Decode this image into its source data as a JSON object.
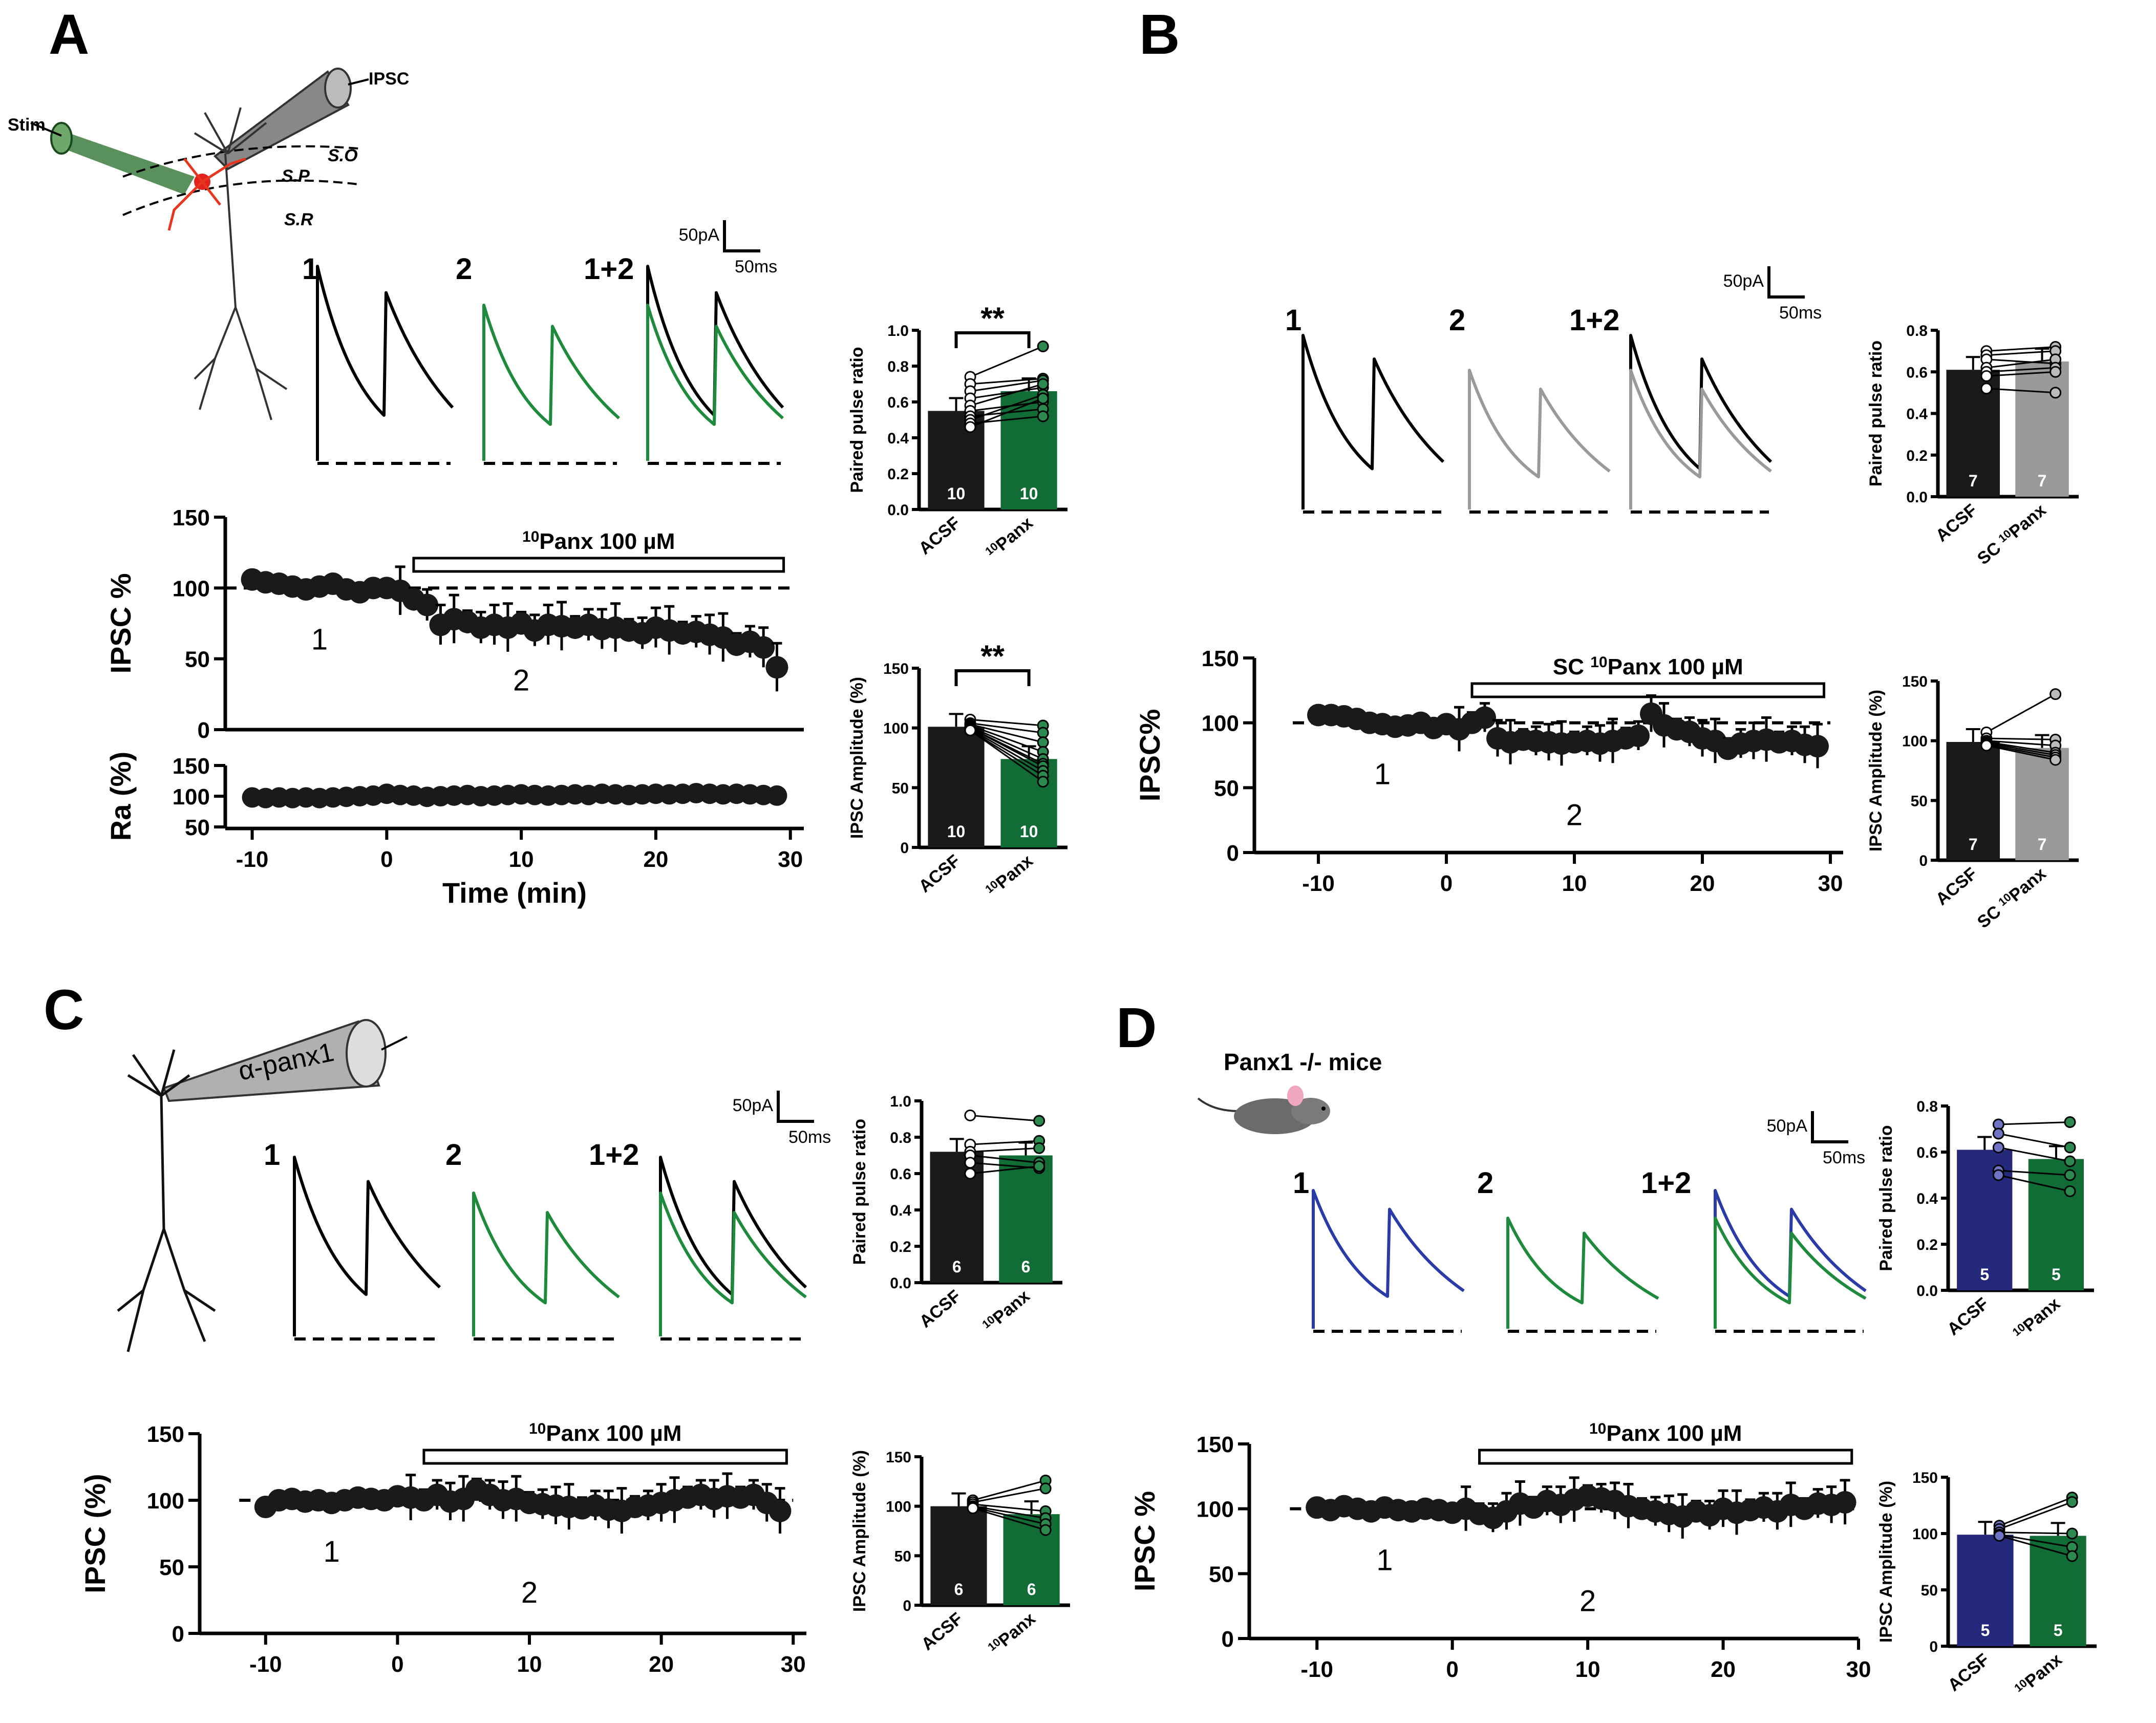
{
  "colors": {
    "acsf": "#1a1a1a",
    "panx": "#116c35",
    "sc": "#9a9a9c",
    "ko": "#25297c",
    "black": "#000000"
  },
  "panel_labels": [
    "A",
    "B",
    "C",
    "D"
  ],
  "traces": {
    "labels": [
      "1",
      "2",
      "1+2"
    ],
    "scale_pa": "50pA",
    "scale_ms": "50ms"
  },
  "schematic_a": {
    "stim": "Stim",
    "ipsc": "IPSC",
    "layers": [
      "S.O",
      "S.P",
      "S.R"
    ]
  },
  "schematic_c": {
    "pipette": "α-panx1"
  },
  "schematic_d": {
    "title": "Panx1 -/- mice",
    "icon": "mouse-icon"
  },
  "chart_data": [
    {
      "type": "scatter",
      "panel": "A",
      "drug_label": "10Panx 100 µM",
      "drug_sup": "10",
      "drug_rest": "Panx 100 µM",
      "ylabel": "IPSC %",
      "xlabel": "Time (min)",
      "xlim": [
        -12,
        31
      ],
      "ylim": [
        0,
        150
      ],
      "xticks": [
        "-10",
        "0",
        "10",
        "20",
        "30"
      ],
      "yticks": [
        "0",
        "50",
        "100",
        "150"
      ],
      "marks": [
        "1",
        "2"
      ],
      "x": [
        -10,
        -9,
        -8,
        -7,
        -6,
        -5,
        -4,
        -3,
        -2,
        -1,
        0,
        1,
        2,
        3,
        4,
        5,
        6,
        7,
        8,
        9,
        10,
        11,
        12,
        13,
        14,
        15,
        16,
        17,
        18,
        19,
        20,
        21,
        22,
        23,
        24,
        25,
        26,
        27,
        28,
        29
      ],
      "y": [
        106,
        104,
        103,
        101,
        99,
        101,
        103,
        99,
        97,
        100,
        100,
        98,
        92,
        88,
        74,
        78,
        76,
        72,
        74,
        72,
        75,
        70,
        74,
        73,
        72,
        74,
        71,
        72,
        70,
        68,
        72,
        70,
        68,
        69,
        67,
        65,
        60,
        62,
        58,
        44
      ],
      "sub": {
        "ylabel": "Ra (%)",
        "ylim": [
          50,
          150
        ],
        "yticks": [
          "50",
          "100",
          "150"
        ],
        "x": [
          -10,
          -9,
          -8,
          -7,
          -6,
          -5,
          -4,
          -3,
          -2,
          -1,
          0,
          1,
          2,
          3,
          4,
          5,
          6,
          7,
          8,
          9,
          10,
          11,
          12,
          13,
          14,
          15,
          16,
          17,
          18,
          19,
          20,
          21,
          22,
          23,
          24,
          25,
          26,
          27,
          28,
          29
        ],
        "y": [
          98,
          97,
          98,
          97,
          98,
          97,
          98,
          99,
          100,
          101,
          104,
          102,
          101,
          99,
          100,
          101,
          102,
          100,
          101,
          102,
          103,
          102,
          101,
          102,
          103,
          102,
          104,
          103,
          102,
          103,
          104,
          103,
          104,
          105,
          104,
          103,
          104,
          103,
          102,
          101
        ]
      },
      "ppr": {
        "ylabel": "Paired pulse ratio",
        "ylim": [
          0,
          1.0
        ],
        "yticks": [
          "0.0",
          "0.2",
          "0.4",
          "0.6",
          "0.8",
          "1.0"
        ],
        "categories": [
          "ACSF",
          "10Panx"
        ],
        "cat_sups": [
          "",
          "10"
        ],
        "cat_rests": [
          "ACSF",
          "Panx"
        ],
        "values": [
          0.55,
          0.66
        ],
        "n": [
          "10",
          "10"
        ],
        "sig": "**",
        "pairs": [
          [
            0.74,
            0.91
          ],
          [
            0.7,
            0.73
          ],
          [
            0.66,
            0.72
          ],
          [
            0.62,
            0.68
          ],
          [
            0.58,
            0.7
          ],
          [
            0.55,
            0.6
          ],
          [
            0.52,
            0.56
          ],
          [
            0.5,
            0.64
          ],
          [
            0.48,
            0.52
          ],
          [
            0.46,
            0.62
          ]
        ]
      },
      "amp": {
        "ylabel": "IPSC Amplitude (%)",
        "ylim": [
          0,
          150
        ],
        "yticks": [
          "0",
          "50",
          "100",
          "150"
        ],
        "categories": [
          "ACSF",
          "10Panx"
        ],
        "cat_sups": [
          "",
          "10"
        ],
        "cat_rests": [
          "ACSF",
          "Panx"
        ],
        "values": [
          101,
          74
        ],
        "n": [
          "10",
          "10"
        ],
        "sig": "**",
        "pairs": [
          [
            107,
            102
          ],
          [
            104,
            96
          ],
          [
            103,
            88
          ],
          [
            102,
            80
          ],
          [
            101,
            74
          ],
          [
            100,
            70
          ],
          [
            100,
            68
          ],
          [
            99,
            64
          ],
          [
            98,
            60
          ],
          [
            98,
            55
          ]
        ]
      }
    },
    {
      "type": "scatter",
      "panel": "B",
      "drug_label": "SC 10Panx 100 µM",
      "drug_sup": "10",
      "drug_pre": "SC ",
      "drug_rest": "Panx 100 µM",
      "ylabel": "IPSC%",
      "xlabel": "",
      "xlim": [
        -15,
        31
      ],
      "ylim": [
        0,
        150
      ],
      "xticks": [
        "-10",
        "0",
        "10",
        "20",
        "30"
      ],
      "yticks": [
        "0",
        "50",
        "100",
        "150"
      ],
      "marks": [
        "1",
        "2"
      ],
      "x": [
        -10,
        -9,
        -8,
        -7,
        -6,
        -5,
        -4,
        -3,
        -2,
        -1,
        0,
        1,
        2,
        3,
        4,
        5,
        6,
        7,
        8,
        9,
        10,
        11,
        12,
        13,
        14,
        15,
        16,
        17,
        18,
        19,
        20,
        21,
        22,
        23,
        24,
        25,
        26,
        27,
        28,
        29
      ],
      "y": [
        106,
        106,
        105,
        103,
        100,
        99,
        97,
        98,
        100,
        96,
        99,
        95,
        100,
        104,
        88,
        85,
        87,
        86,
        85,
        84,
        85,
        86,
        84,
        86,
        88,
        90,
        107,
        98,
        95,
        93,
        88,
        86,
        80,
        84,
        86,
        87,
        85,
        86,
        83,
        82
      ],
      "ppr": {
        "ylabel": "Paired pulse ratio",
        "ylim": [
          0,
          0.8
        ],
        "yticks": [
          "0.0",
          "0.2",
          "0.4",
          "0.6",
          "0.8"
        ],
        "categories": [
          "ACSF",
          "SC 10Panx"
        ],
        "cat_sups": [
          "",
          "10"
        ],
        "cat_rests": [
          "ACSF",
          "SC Panx"
        ],
        "values": [
          0.61,
          0.65
        ],
        "n": [
          "7",
          "7"
        ],
        "pairs": [
          [
            0.7,
            0.72
          ],
          [
            0.68,
            0.7
          ],
          [
            0.66,
            0.64
          ],
          [
            0.62,
            0.66
          ],
          [
            0.6,
            0.62
          ],
          [
            0.58,
            0.6
          ],
          [
            0.52,
            0.5
          ]
        ]
      },
      "amp": {
        "ylabel": "IPSC Amplitude (%)",
        "ylim": [
          0,
          150
        ],
        "yticks": [
          "0",
          "50",
          "100",
          "150"
        ],
        "categories": [
          "ACSF",
          "SC 10Panx"
        ],
        "cat_sups": [
          "",
          "10"
        ],
        "cat_rests": [
          "ACSF",
          "SC Panx"
        ],
        "values": [
          99,
          94
        ],
        "n": [
          "7",
          "7"
        ],
        "pairs": [
          [
            107,
            139
          ],
          [
            102,
            101
          ],
          [
            100,
            96
          ],
          [
            99,
            90
          ],
          [
            98,
            88
          ],
          [
            97,
            86
          ],
          [
            96,
            84
          ]
        ]
      }
    },
    {
      "type": "scatter",
      "panel": "C",
      "drug_label": "10Panx 100 µM",
      "drug_sup": "10",
      "drug_rest": "Panx 100 µM",
      "ylabel": "IPSC (%)",
      "xlabel": "",
      "xlim": [
        -15,
        31
      ],
      "ylim": [
        0,
        150
      ],
      "xticks": [
        "-10",
        "0",
        "10",
        "20",
        "30"
      ],
      "yticks": [
        "0",
        "50",
        "100",
        "150"
      ],
      "marks": [
        "1",
        "2"
      ],
      "x": [
        -10,
        -9,
        -8,
        -7,
        -6,
        -5,
        -4,
        -3,
        -2,
        -1,
        0,
        1,
        2,
        3,
        4,
        5,
        6,
        7,
        8,
        9,
        10,
        11,
        12,
        13,
        14,
        15,
        16,
        17,
        18,
        19,
        20,
        21,
        22,
        23,
        24,
        25,
        26,
        27,
        28,
        29
      ],
      "y": [
        95,
        100,
        101,
        99,
        100,
        98,
        100,
        102,
        101,
        100,
        103,
        102,
        100,
        104,
        99,
        101,
        108,
        104,
        100,
        101,
        98,
        97,
        96,
        95,
        94,
        96,
        93,
        92,
        95,
        96,
        98,
        100,
        102,
        104,
        101,
        103,
        102,
        104,
        98,
        92
      ],
      "ppr": {
        "ylabel": "Paired pulse ratio",
        "ylim": [
          0,
          1.0
        ],
        "yticks": [
          "0.0",
          "0.2",
          "0.4",
          "0.6",
          "0.8",
          "1.0"
        ],
        "categories": [
          "ACSF",
          "10Panx"
        ],
        "cat_sups": [
          "",
          "10"
        ],
        "cat_rests": [
          "ACSF",
          "Panx"
        ],
        "values": [
          0.72,
          0.7
        ],
        "n": [
          "6",
          "6"
        ],
        "pairs": [
          [
            0.92,
            0.89
          ],
          [
            0.76,
            0.78
          ],
          [
            0.72,
            0.74
          ],
          [
            0.7,
            0.66
          ],
          [
            0.66,
            0.63
          ],
          [
            0.6,
            0.64
          ]
        ]
      },
      "amp": {
        "ylabel": "IPSC Amplitude (%)",
        "ylim": [
          0,
          150
        ],
        "yticks": [
          "0",
          "50",
          "100",
          "150"
        ],
        "categories": [
          "ACSF",
          "10Panx"
        ],
        "cat_sups": [
          "",
          "10"
        ],
        "cat_rests": [
          "ACSF",
          "Panx"
        ],
        "values": [
          100,
          92
        ],
        "n": [
          "6",
          "6"
        ],
        "pairs": [
          [
            106,
            126
          ],
          [
            104,
            118
          ],
          [
            102,
            95
          ],
          [
            100,
            88
          ],
          [
            99,
            82
          ],
          [
            98,
            76
          ]
        ]
      }
    },
    {
      "type": "scatter",
      "panel": "D",
      "drug_label": "10Panx 100 µM",
      "drug_sup": "10",
      "drug_rest": "Panx 100 µM",
      "ylabel": "IPSC %",
      "xlabel": "",
      "xlim": [
        -15,
        30
      ],
      "ylim": [
        0,
        150
      ],
      "xticks": [
        "-10",
        "0",
        "10",
        "20",
        "30"
      ],
      "yticks": [
        "0",
        "50",
        "100",
        "150"
      ],
      "marks": [
        "1",
        "2"
      ],
      "x": [
        -10,
        -9,
        -8,
        -7,
        -6,
        -5,
        -4,
        -3,
        -2,
        -1,
        0,
        1,
        2,
        3,
        4,
        5,
        6,
        7,
        8,
        9,
        10,
        11,
        12,
        13,
        14,
        15,
        16,
        17,
        18,
        19,
        20,
        21,
        22,
        23,
        24,
        25,
        26,
        27,
        28,
        29
      ],
      "y": [
        101,
        99,
        102,
        100,
        98,
        101,
        99,
        98,
        100,
        99,
        97,
        100,
        96,
        93,
        98,
        104,
        101,
        106,
        103,
        107,
        110,
        108,
        106,
        102,
        100,
        98,
        96,
        94,
        98,
        95,
        100,
        97,
        99,
        101,
        98,
        103,
        100,
        104,
        103,
        105
      ],
      "ppr": {
        "ylabel": "Paired pulse ratio",
        "ylim": [
          0,
          0.8
        ],
        "yticks": [
          "0.0",
          "0.2",
          "0.4",
          "0.6",
          "0.8"
        ],
        "categories": [
          "ACSF",
          "10Panx"
        ],
        "cat_sups": [
          "",
          "10"
        ],
        "cat_rests": [
          "ACSF",
          "Panx"
        ],
        "values": [
          0.61,
          0.57
        ],
        "n": [
          "5",
          "5"
        ],
        "pairs": [
          [
            0.72,
            0.73
          ],
          [
            0.68,
            0.62
          ],
          [
            0.62,
            0.56
          ],
          [
            0.52,
            0.5
          ],
          [
            0.5,
            0.43
          ]
        ]
      },
      "amp": {
        "ylabel": "IPSC Amplitude (%)",
        "ylim": [
          0,
          150
        ],
        "yticks": [
          "0",
          "50",
          "100",
          "150"
        ],
        "categories": [
          "ACSF",
          "10Panx"
        ],
        "cat_sups": [
          "",
          "10"
        ],
        "cat_rests": [
          "ACSF",
          "Panx"
        ],
        "values": [
          99,
          98
        ],
        "n": [
          "5",
          "5"
        ],
        "pairs": [
          [
            107,
            132
          ],
          [
            104,
            128
          ],
          [
            101,
            100
          ],
          [
            99,
            88
          ],
          [
            98,
            80
          ]
        ]
      }
    }
  ]
}
